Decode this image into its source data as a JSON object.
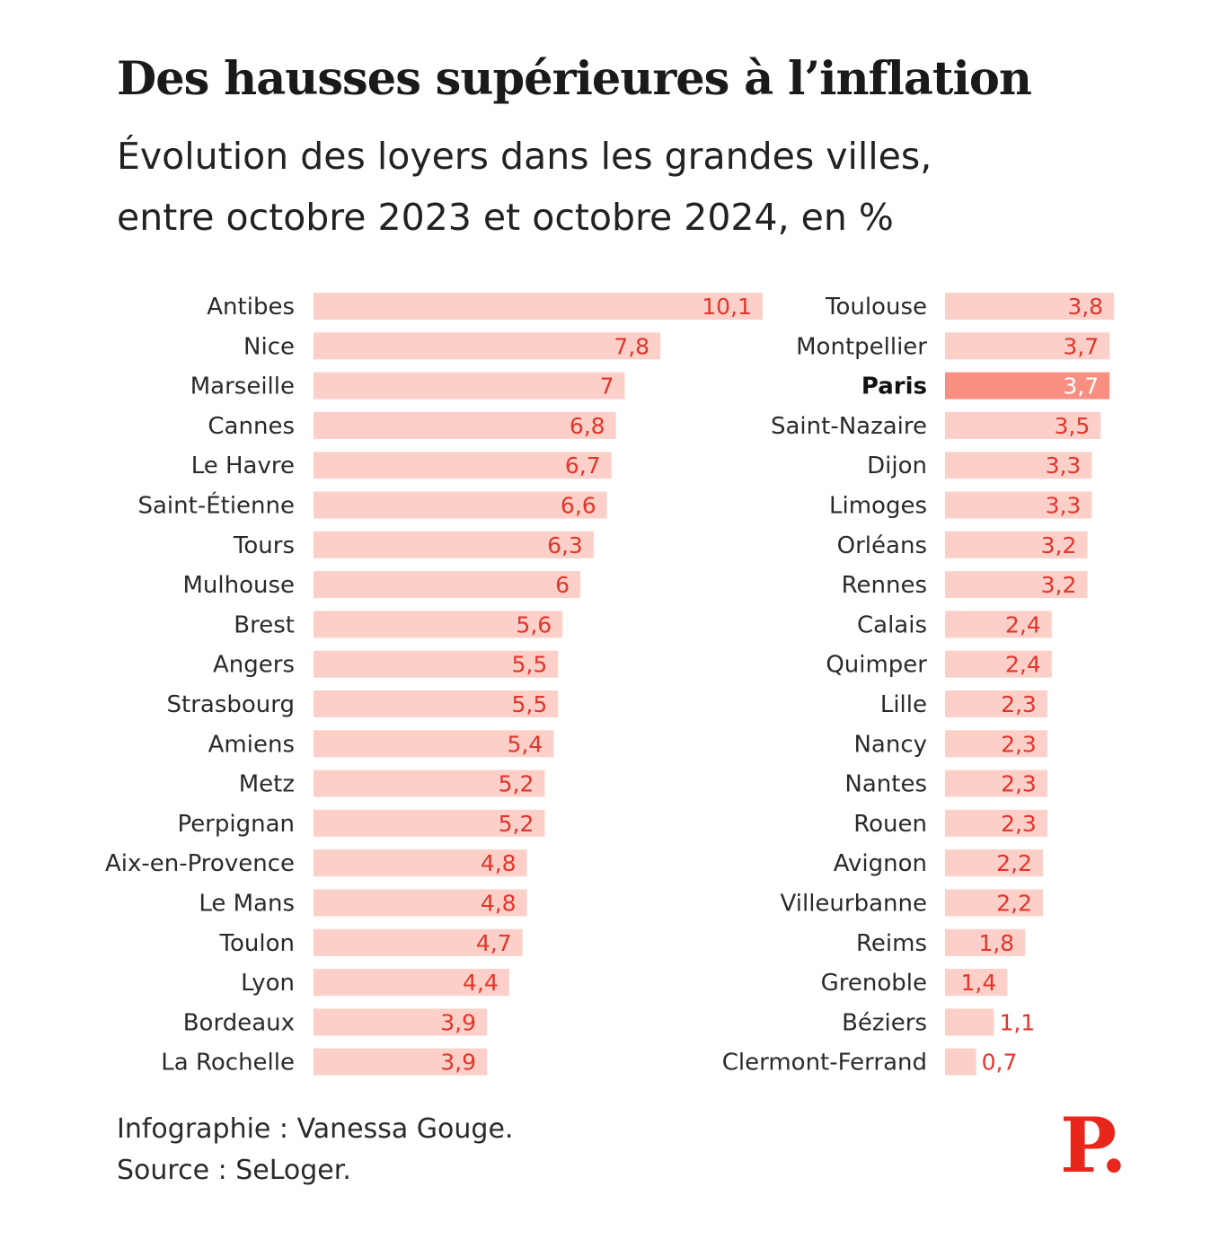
{
  "header": {
    "title": "Des hausses supérieures à l’inflation",
    "subtitle_line1": "Évolution des loyers dans les grandes villes,",
    "subtitle_line2": "entre octobre 2023 et octobre 2024, en %"
  },
  "footer": {
    "credit": "Infographie : Vanessa Gouge.",
    "source": "Source : SeLoger.",
    "logo_text": "P."
  },
  "colors": {
    "bar": "#fcd0c8",
    "bar_highlight": "#f98f80",
    "value_text": "#e0362c",
    "logo": "#e8271c"
  },
  "chart_data": {
    "type": "bar",
    "orientation": "horizontal",
    "unit": "%",
    "highlight": "Paris",
    "columns": [
      {
        "categories": [
          "Antibes",
          "Nice",
          "Marseille",
          "Cannes",
          "Le Havre",
          "Saint-Étienne",
          "Tours",
          "Mulhouse",
          "Brest",
          "Angers",
          "Strasbourg",
          "Amiens",
          "Metz",
          "Perpignan",
          "Aix-en-Provence",
          "Le Mans",
          "Toulon",
          "Lyon",
          "Bordeaux",
          "La Rochelle"
        ],
        "values": [
          10.1,
          7.8,
          7,
          6.8,
          6.7,
          6.6,
          6.3,
          6,
          5.6,
          5.5,
          5.5,
          5.4,
          5.2,
          5.2,
          4.8,
          4.8,
          4.7,
          4.4,
          3.9,
          3.9
        ],
        "labels": [
          "10,1",
          "7,8",
          "7",
          "6,8",
          "6,7",
          "6,6",
          "6,3",
          "6",
          "5,6",
          "5,5",
          "5,5",
          "5,4",
          "5,2",
          "5,2",
          "4,8",
          "4,8",
          "4,7",
          "4,4",
          "3,9",
          "3,9"
        ]
      },
      {
        "categories": [
          "Toulouse",
          "Montpellier",
          "Paris",
          "Saint-Nazaire",
          "Dijon",
          "Limoges",
          "Orléans",
          "Rennes",
          "Calais",
          "Quimper",
          "Lille",
          "Nancy",
          "Nantes",
          "Rouen",
          "Avignon",
          "Villeurbanne",
          "Reims",
          "Grenoble",
          "Béziers",
          "Clermont-Ferrand"
        ],
        "values": [
          3.8,
          3.7,
          3.7,
          3.5,
          3.3,
          3.3,
          3.2,
          3.2,
          2.4,
          2.4,
          2.3,
          2.3,
          2.3,
          2.3,
          2.2,
          2.2,
          1.8,
          1.4,
          1.1,
          0.7
        ],
        "labels": [
          "3,8",
          "3,7",
          "3,7",
          "3,5",
          "3,3",
          "3,3",
          "3,2",
          "3,2",
          "2,4",
          "2,4",
          "2,3",
          "2,3",
          "2,3",
          "2,3",
          "2,2",
          "2,2",
          "1,8",
          "1,4",
          "1,1",
          "0,7"
        ]
      }
    ]
  }
}
